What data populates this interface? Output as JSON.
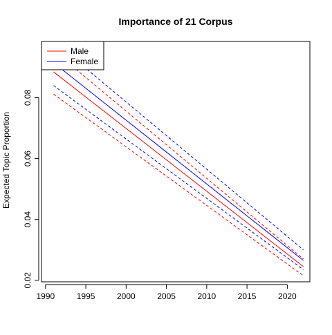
{
  "chart_data": {
    "type": "line",
    "title": "Importance of 21 Corpus",
    "xlabel": "",
    "ylabel": "Expected Topic Proportion",
    "xlim": [
      1989.5,
      2022.8
    ],
    "ylim": [
      0.0195,
      0.0985
    ],
    "x_ticks": [
      1990,
      1995,
      2000,
      2005,
      2010,
      2015,
      2020
    ],
    "y_ticks": [
      0.02,
      0.04,
      0.06,
      0.08
    ],
    "x_tick_labels": [
      "1990",
      "1995",
      "2000",
      "2005",
      "2010",
      "2015",
      "2020"
    ],
    "y_tick_labels": [
      "0.02",
      "0.04",
      "0.06",
      "0.08"
    ],
    "grid": false,
    "legend_position": "top-left",
    "x": [
      1991,
      2022
    ],
    "series": [
      {
        "name": "Male",
        "color": "#ff0000",
        "style": "solid",
        "values": [
          0.0885,
          0.0245
        ]
      },
      {
        "name": "Female",
        "color": "#0000ff",
        "style": "solid",
        "values": [
          0.0915,
          0.0265
        ]
      },
      {
        "color": "#ff0000",
        "style": "dashed",
        "values": [
          0.0812,
          0.0215
        ]
      },
      {
        "color": "#ff0000",
        "style": "dashed",
        "values": [
          0.0955,
          0.027
        ]
      },
      {
        "color": "#0000ff",
        "style": "dashed",
        "values": [
          0.084,
          0.0235
        ]
      },
      {
        "color": "#0000ff",
        "style": "dashed",
        "values": [
          0.0985,
          0.03
        ]
      }
    ],
    "legend": [
      {
        "label": "Male",
        "color": "#ff0000"
      },
      {
        "label": "Female",
        "color": "#0000ff"
      }
    ]
  }
}
